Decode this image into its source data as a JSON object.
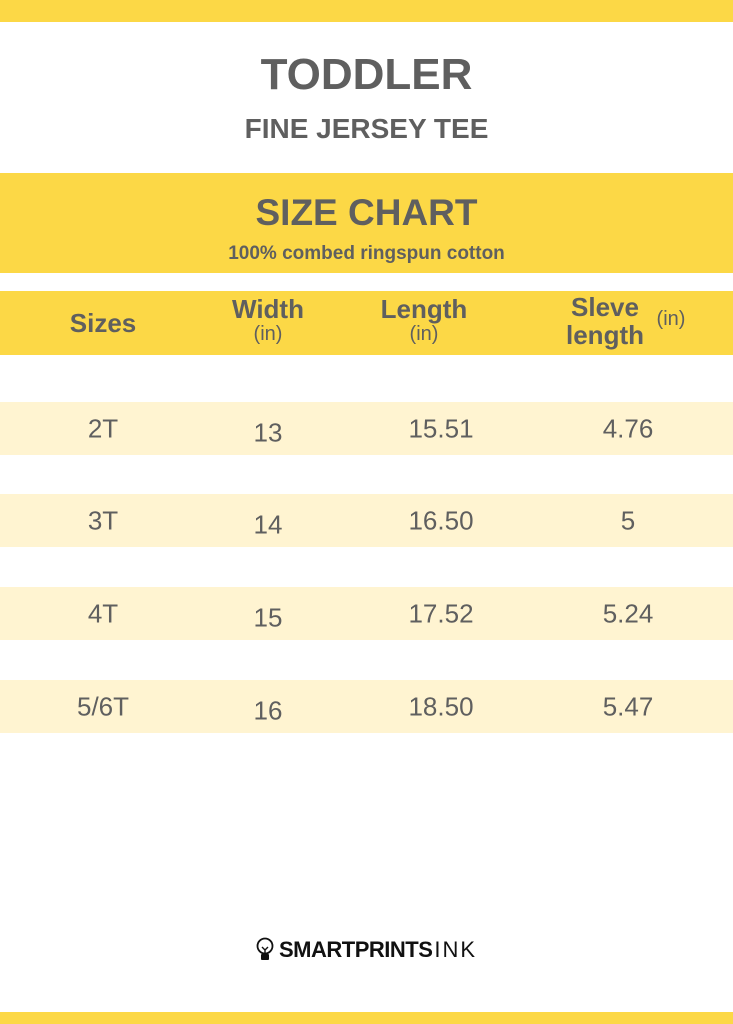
{
  "title": "TODDLER",
  "subtitle": "FINE JERSEY TEE",
  "band": {
    "title": "SIZE CHART",
    "material": "100% combed ringspun cotton"
  },
  "headers": {
    "sizes": "Sizes",
    "width": "Width",
    "width_unit": "(in)",
    "length": "Length",
    "length_unit": "(in)",
    "sleeve_1": "Sleve",
    "sleeve_2": "length",
    "sleeve_unit": "(in)"
  },
  "rows": [
    [
      "2T",
      "13",
      "15.51",
      "4.76"
    ],
    [
      "3T",
      "14",
      "16.50",
      "5"
    ],
    [
      "4T",
      "15",
      "17.52",
      "5.24"
    ],
    [
      "5/6T",
      "16",
      "18.50",
      "5.47"
    ]
  ],
  "logo": {
    "bold": "SMARTPRINTS",
    "light": "INK",
    "icon": "lightbulb-icon"
  },
  "colors": {
    "accent": "#fcd846",
    "row": "#fff4d1",
    "text": "#5f5f5f"
  }
}
